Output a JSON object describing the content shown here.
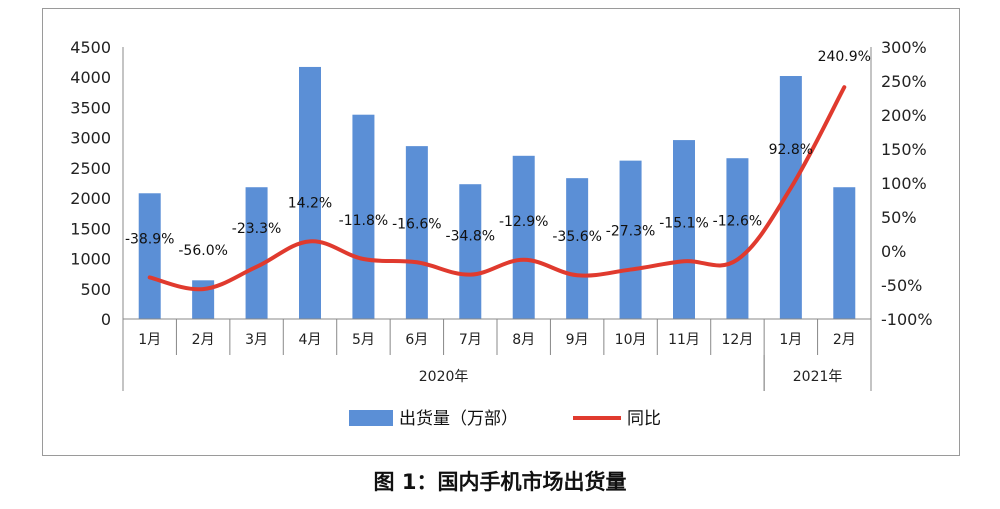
{
  "chart_data": {
    "type": "bar",
    "categories": [
      "1月",
      "2月",
      "3月",
      "4月",
      "5月",
      "6月",
      "7月",
      "8月",
      "9月",
      "10月",
      "11月",
      "12月",
      "1月",
      "2月"
    ],
    "groups": [
      {
        "label": "2020年",
        "start": 0,
        "end": 11
      },
      {
        "label": "2021年",
        "start": 12,
        "end": 13
      }
    ],
    "series": [
      {
        "name": "出货量（万部）",
        "type": "bar",
        "axis": "left",
        "color": "#5b8fd6",
        "values": [
          2080,
          640,
          2180,
          4170,
          3380,
          2860,
          2230,
          2700,
          2330,
          2620,
          2960,
          2660,
          4020,
          2180
        ]
      },
      {
        "name": "同比",
        "type": "line",
        "axis": "right",
        "color": "#e03a2e",
        "values": [
          -38.9,
          -56.0,
          -23.3,
          14.2,
          -11.8,
          -16.6,
          -34.8,
          -12.9,
          -35.6,
          -27.3,
          -15.1,
          -12.6,
          92.8,
          240.9
        ],
        "labels": [
          "-38.9%",
          "-56.0%",
          "-23.3%",
          "14.2%",
          "-11.8%",
          "-16.6%",
          "-34.8%",
          "-12.9%",
          "-35.6%",
          "-27.3%",
          "-15.1%",
          "-12.6%",
          "92.8%",
          "240.9%"
        ]
      }
    ],
    "left_axis": {
      "min": 0,
      "max": 4500,
      "step": 500,
      "ticks": [
        "0",
        "500",
        "1000",
        "1500",
        "2000",
        "2500",
        "3000",
        "3500",
        "4000",
        "4500"
      ]
    },
    "right_axis": {
      "min": -100,
      "max": 300,
      "step": 50,
      "ticks": [
        "-100%",
        "-50%",
        "0%",
        "50%",
        "100%",
        "150%",
        "200%",
        "250%",
        "300%"
      ]
    },
    "legend_placement": "bottom",
    "grid": false
  },
  "caption": "图 1：国内手机市场出货量"
}
